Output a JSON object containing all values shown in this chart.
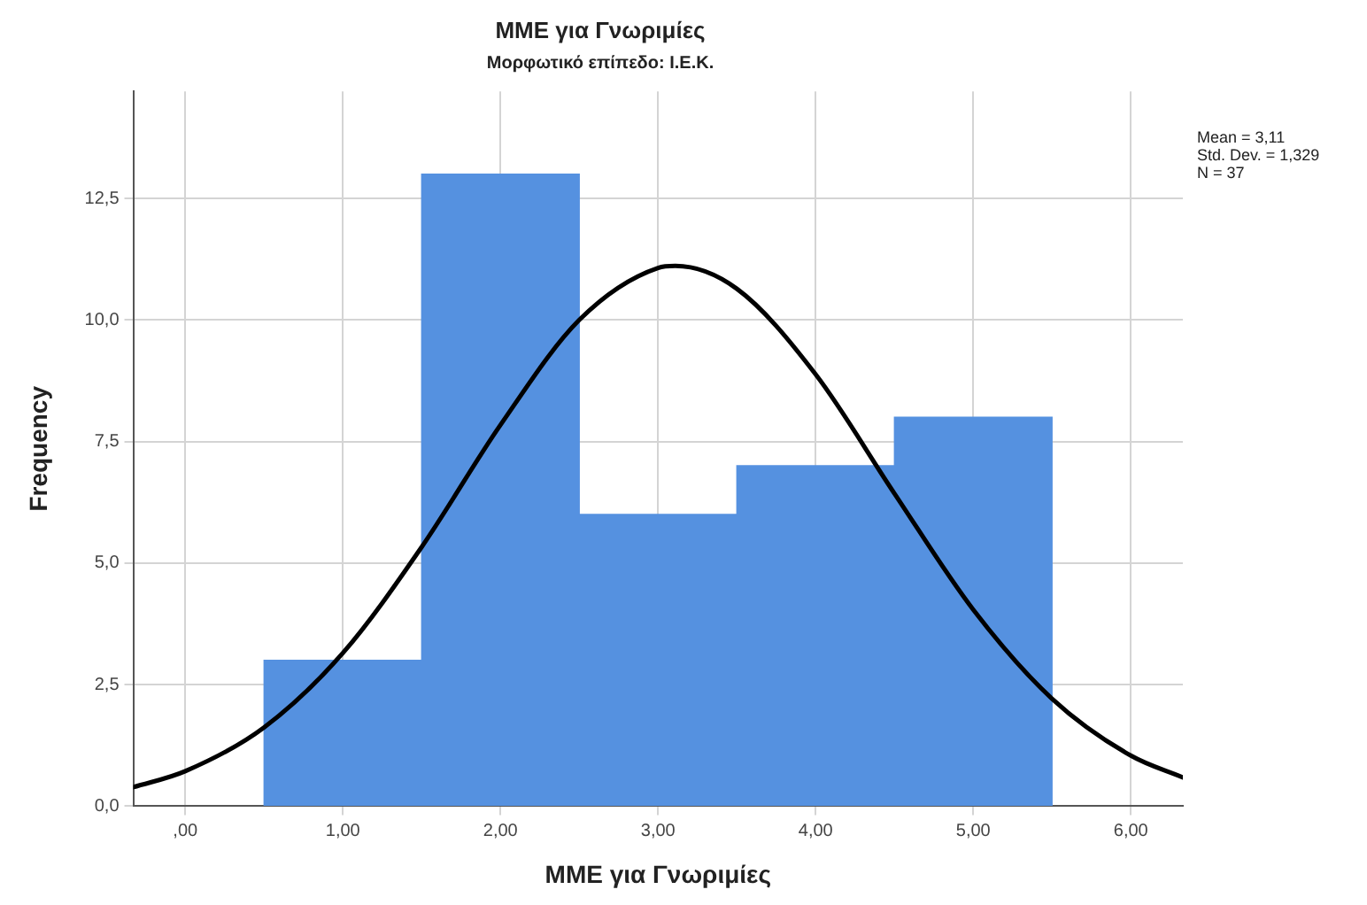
{
  "chart_data": {
    "type": "histogram",
    "title": "ΜΜΕ για Γνωριμίες",
    "subtitle": "Μορφωτικό επίπεδο: Ι.Ε.Κ.",
    "xlabel": "ΜΜΕ για Γνωριμίες",
    "ylabel": "Frequency",
    "bins": [
      0.5,
      1.5,
      2.5,
      3.5,
      4.5,
      5.5
    ],
    "values": [
      3,
      13,
      6,
      7,
      8
    ],
    "color": "#5591e0",
    "series": [
      {
        "type": "line",
        "color": "#000000",
        "x": [
          -0.33,
          0,
          0.5,
          1,
          1.5,
          2,
          2.5,
          3,
          3.11,
          3.5,
          4,
          4.5,
          5,
          5.5,
          6,
          6.33
        ],
        "values": [
          0.39,
          0.72,
          1.62,
          3.15,
          5.33,
          7.84,
          10.0,
          11.07,
          11.11,
          10.64,
          8.88,
          6.43,
          4.04,
          2.21,
          1.04,
          0.59
        ]
      }
    ],
    "xlim": [
      -0.33,
      6.33
    ],
    "xticks": [
      {
        "value": 0,
        "label": ",00"
      },
      {
        "value": 1,
        "label": "1,00"
      },
      {
        "value": 2,
        "label": "2,00"
      },
      {
        "value": 3,
        "label": "3,00"
      },
      {
        "value": 4,
        "label": "4,00"
      },
      {
        "value": 5,
        "label": "5,00"
      },
      {
        "value": 6,
        "label": "6,00"
      }
    ],
    "ylim": [
      0,
      14.7
    ],
    "yticks": [
      {
        "value": 0,
        "label": "0,0"
      },
      {
        "value": 2.5,
        "label": "2,5"
      },
      {
        "value": 5,
        "label": "5,0"
      },
      {
        "value": 7.5,
        "label": "7,5"
      },
      {
        "value": 10,
        "label": "10,0"
      },
      {
        "value": 12.5,
        "label": "12,5"
      }
    ],
    "grid": true,
    "marker": "none",
    "annotations": [
      "Mean = 3,11",
      "Std. Dev. = 1,329",
      "N = 37"
    ]
  }
}
